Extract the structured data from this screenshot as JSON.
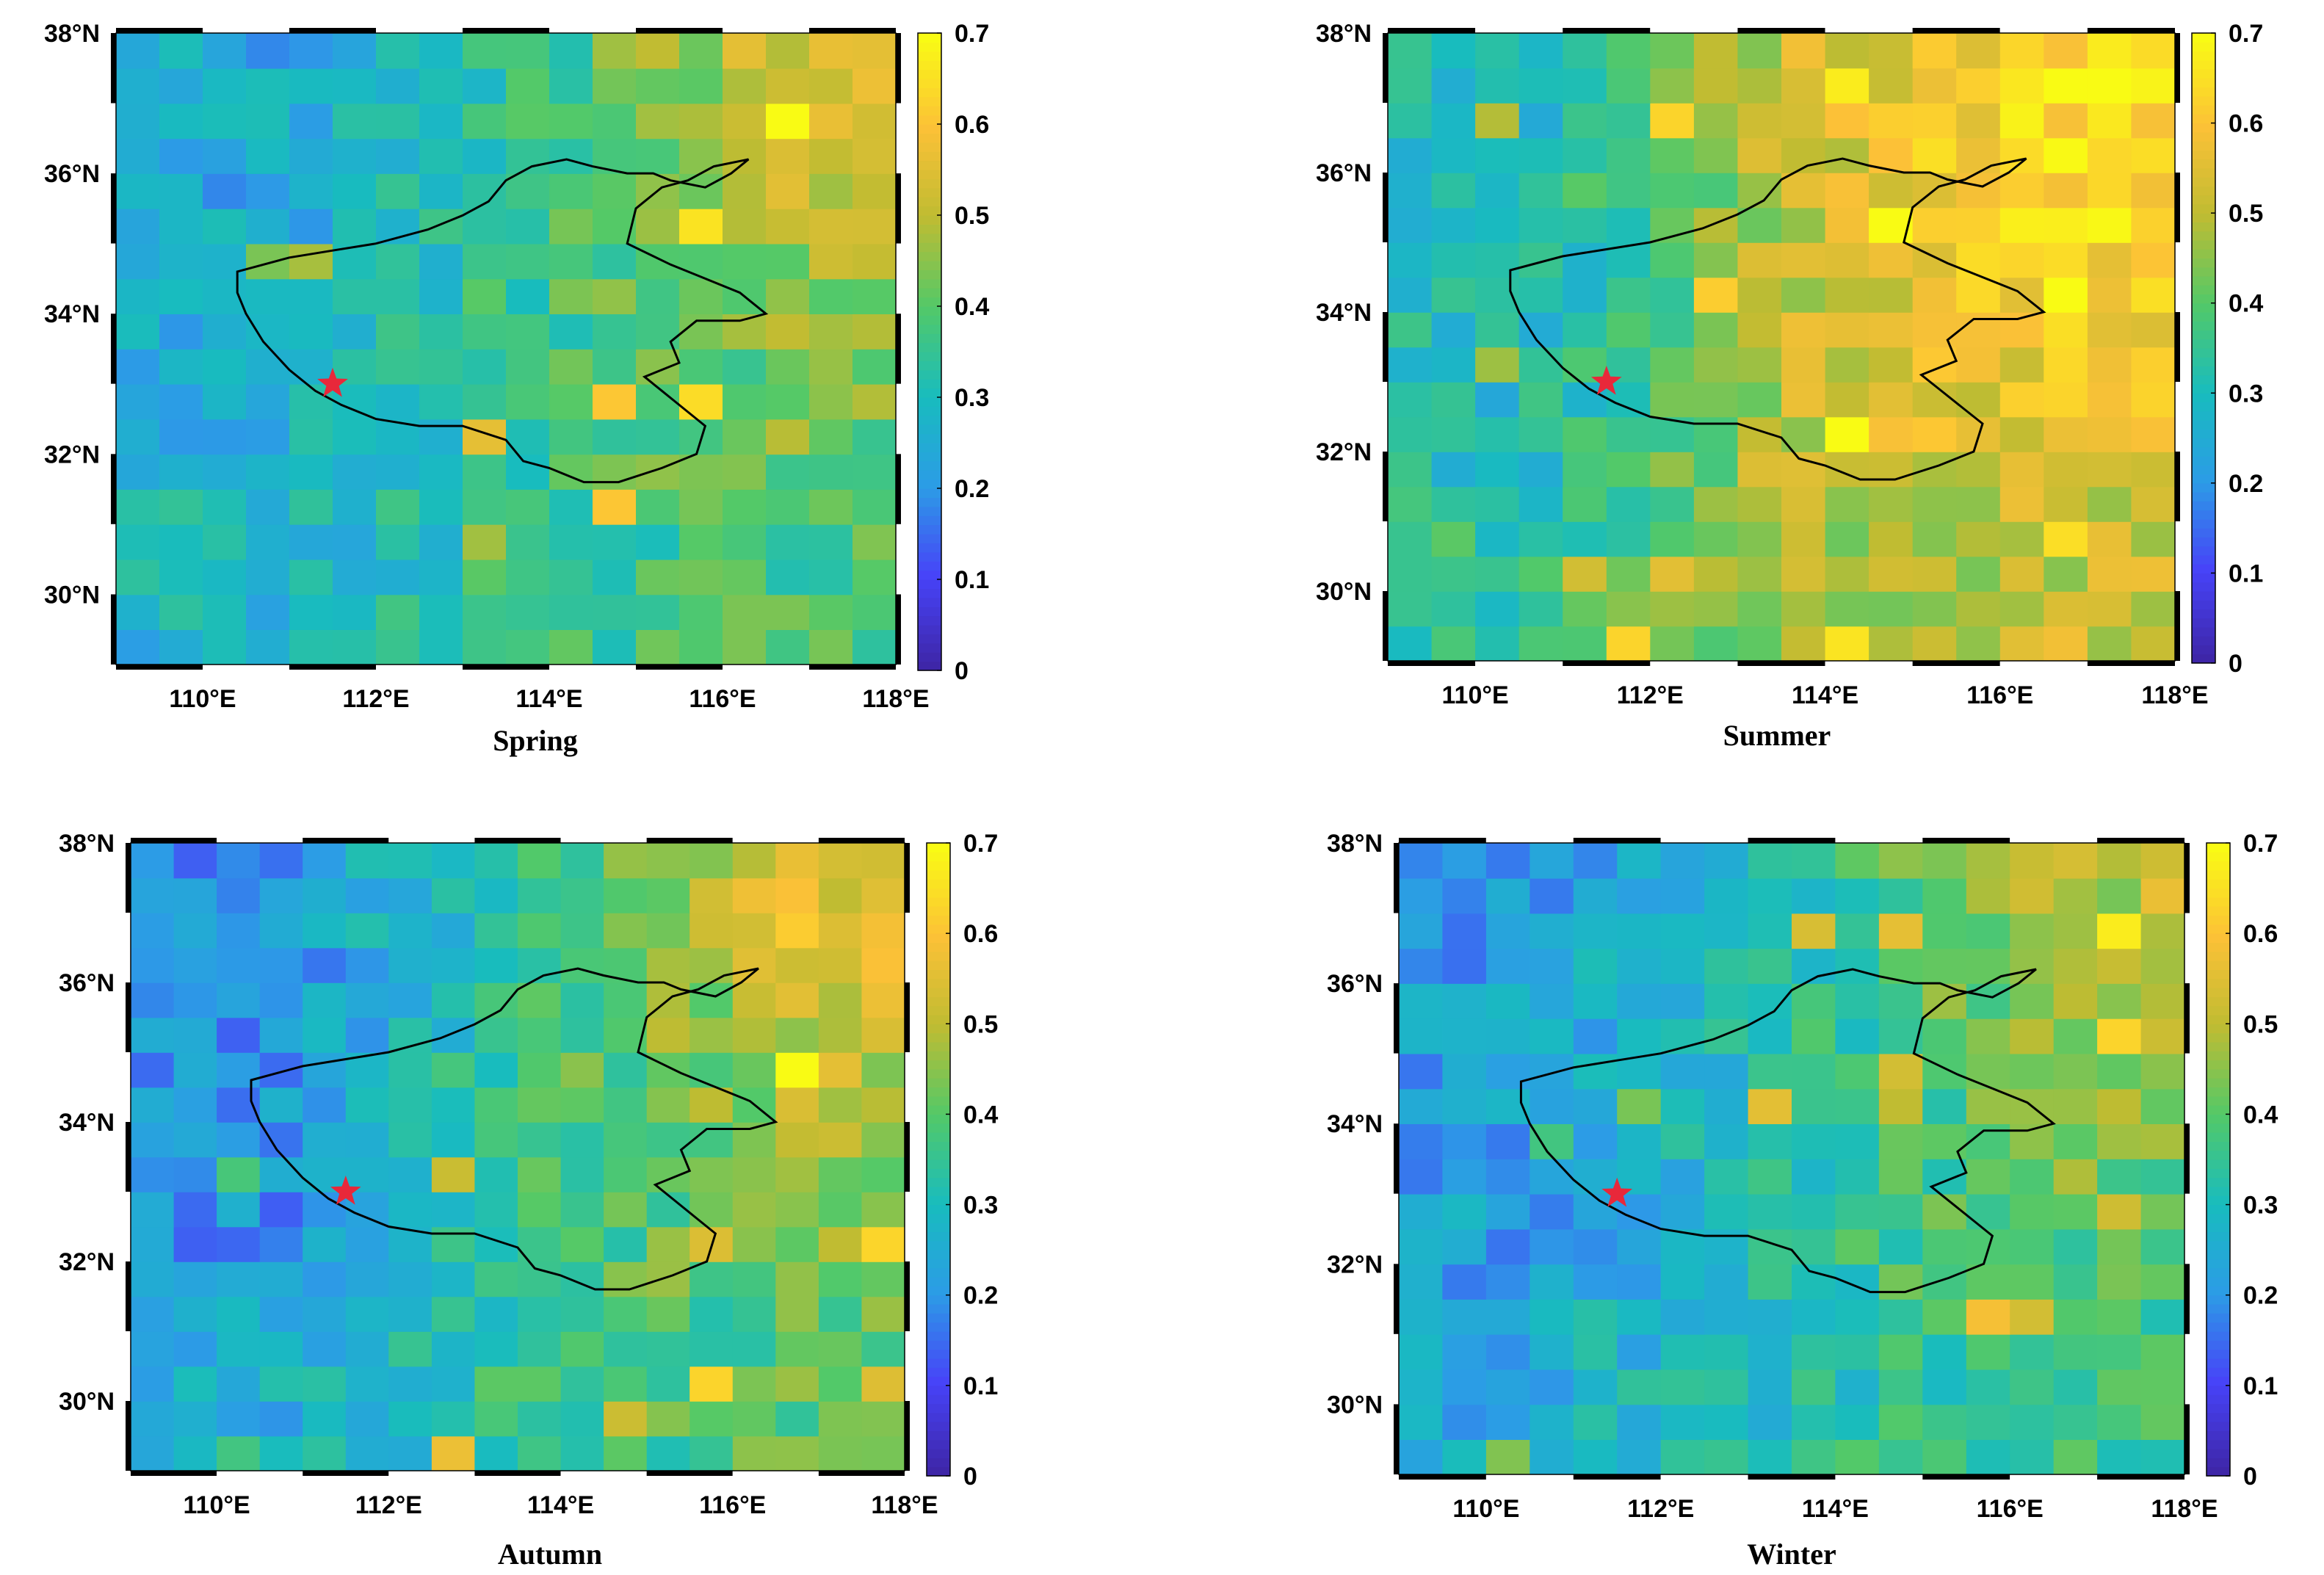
{
  "figure": {
    "colormap": [
      "#3e26a8",
      "#4743f8",
      "#2c9ce6",
      "#18bcbe",
      "#53c968",
      "#bfbc32",
      "#fcc137",
      "#f9fb14"
    ],
    "boundary_color": "#000000",
    "star_color": "#e8283a"
  },
  "chart_data": [
    {
      "type": "heatmap",
      "title": "Spring",
      "x_ticks": [
        110,
        112,
        114,
        116,
        118
      ],
      "x_tick_labels": [
        "110°E",
        "112°E",
        "114°E",
        "116°E",
        "118°E"
      ],
      "y_ticks": [
        30,
        32,
        34,
        36,
        38
      ],
      "y_tick_labels": [
        "30°N",
        "32°N",
        "34°N",
        "36°N",
        "38°N"
      ],
      "xlim": [
        109,
        118
      ],
      "ylim": [
        29,
        38
      ],
      "color_range": [
        0,
        0.7
      ],
      "colorbar_ticks": [
        "0",
        "0.1",
        "0.2",
        "0.3",
        "0.4",
        "0.5",
        "0.6",
        "0.7"
      ],
      "point_marker": {
        "lon": 111.5,
        "lat": 33.0,
        "symbol": "star"
      },
      "grid": "approximately 0.5° cells; values on 0–0.7 scale",
      "regional_means": {
        "west": 0.24,
        "central": 0.36,
        "east_north": 0.52,
        "south": 0.33
      }
    },
    {
      "type": "heatmap",
      "title": "Summer",
      "x_ticks": [
        110,
        112,
        114,
        116,
        118
      ],
      "x_tick_labels": [
        "110°E",
        "112°E",
        "114°E",
        "116°E",
        "118°E"
      ],
      "y_ticks": [
        30,
        32,
        34,
        36,
        38
      ],
      "y_tick_labels": [
        "30°N",
        "32°N",
        "34°N",
        "36°N",
        "38°N"
      ],
      "xlim": [
        109,
        118
      ],
      "ylim": [
        29,
        38
      ],
      "color_range": [
        0,
        0.7
      ],
      "colorbar_ticks": [
        "0",
        "0.1",
        "0.2",
        "0.3",
        "0.4",
        "0.5",
        "0.6",
        "0.7"
      ],
      "point_marker": {
        "lon": 111.5,
        "lat": 33.0,
        "symbol": "star"
      },
      "grid": "approximately 0.5° cells; values on 0–0.7 scale",
      "regional_means": {
        "west": 0.3,
        "central": 0.52,
        "east_north": 0.66,
        "south": 0.42
      }
    },
    {
      "type": "heatmap",
      "title": "Autumn",
      "x_ticks": [
        110,
        112,
        114,
        116,
        118
      ],
      "x_tick_labels": [
        "110°E",
        "112°E",
        "114°E",
        "116°E",
        "118°E"
      ],
      "y_ticks": [
        30,
        32,
        34,
        36,
        38
      ],
      "y_tick_labels": [
        "30°N",
        "32°N",
        "34°N",
        "36°N",
        "38°N"
      ],
      "xlim": [
        109,
        118
      ],
      "ylim": [
        29,
        38
      ],
      "color_range": [
        0,
        0.7
      ],
      "colorbar_ticks": [
        "0",
        "0.1",
        "0.2",
        "0.3",
        "0.4",
        "0.5",
        "0.6",
        "0.7"
      ],
      "point_marker": {
        "lon": 111.5,
        "lat": 33.0,
        "symbol": "star"
      },
      "grid": "approximately 0.5° cells; values on 0–0.7 scale",
      "regional_means": {
        "west": 0.2,
        "central": 0.36,
        "east_north": 0.55,
        "south": 0.35
      }
    },
    {
      "type": "heatmap",
      "title": "Winter",
      "x_ticks": [
        110,
        112,
        114,
        116,
        118
      ],
      "x_tick_labels": [
        "110°E",
        "112°E",
        "114°E",
        "116°E",
        "118°E"
      ],
      "y_ticks": [
        30,
        32,
        34,
        36,
        38
      ],
      "y_tick_labels": [
        "30°N",
        "32°N",
        "34°N",
        "36°N",
        "38°N"
      ],
      "xlim": [
        109,
        118
      ],
      "ylim": [
        29,
        38
      ],
      "color_range": [
        0,
        0.7
      ],
      "colorbar_ticks": [
        "0",
        "0.1",
        "0.2",
        "0.3",
        "0.4",
        "0.5",
        "0.6",
        "0.7"
      ],
      "point_marker": {
        "lon": 111.5,
        "lat": 33.0,
        "symbol": "star"
      },
      "grid": "approximately 0.5° cells; values on 0–0.7 scale",
      "regional_means": {
        "west": 0.22,
        "central": 0.34,
        "east_north": 0.5,
        "south": 0.3
      }
    }
  ]
}
